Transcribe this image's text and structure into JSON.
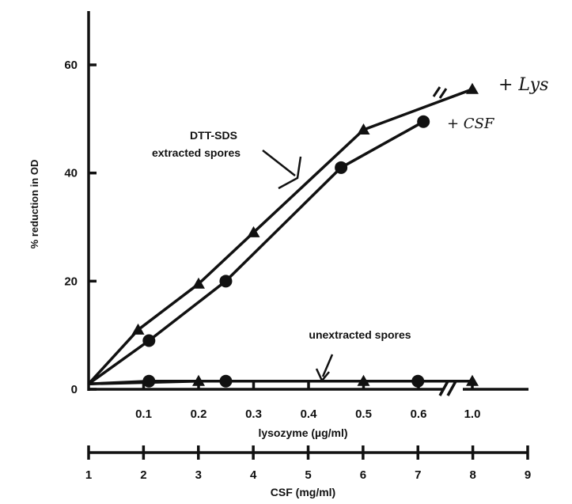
{
  "chart_data": {
    "type": "line",
    "ylabel": "% reduction in OD",
    "yticks": [
      0,
      20,
      40,
      60
    ],
    "ylim": [
      0,
      70
    ],
    "x_primary": {
      "label": "lysozyme (µg/ml)",
      "ticks": [
        "0.1",
        "0.2",
        "0.3",
        "0.4",
        "0.5",
        "0.6",
        "1.0"
      ],
      "tick_values": [
        0.1,
        0.2,
        0.3,
        0.4,
        0.5,
        0.6,
        1.0
      ],
      "axis_break_after": 0.6
    },
    "x_secondary": {
      "label": "CSF (mg/ml)",
      "ticks": [
        "1",
        "2",
        "3",
        "4",
        "5",
        "6",
        "7",
        "8",
        "9"
      ],
      "tick_values": [
        1,
        2,
        3,
        4,
        5,
        6,
        7,
        8,
        9
      ]
    },
    "annotations": {
      "group_extracted_line1": "DTT-SDS",
      "group_extracted_line2": "extracted spores",
      "group_unextracted": "unextracted spores"
    },
    "series": [
      {
        "name": "+ Lys",
        "group": "DTT-SDS extracted spores",
        "marker": "triangle",
        "points": [
          [
            0,
            1
          ],
          [
            0.09,
            11
          ],
          [
            0.2,
            19.5
          ],
          [
            0.3,
            29
          ],
          [
            0.5,
            48
          ],
          [
            1.0,
            55.5
          ]
        ]
      },
      {
        "name": "+ CSF",
        "group": "DTT-SDS extracted spores",
        "marker": "circle",
        "points": [
          [
            1,
            1
          ],
          [
            2.1,
            9
          ],
          [
            3.5,
            20
          ],
          [
            5.6,
            41
          ],
          [
            7.1,
            49.5
          ]
        ]
      },
      {
        "name": "+ Lys",
        "group": "unextracted spores",
        "marker": "triangle",
        "points": [
          [
            0,
            1
          ],
          [
            0.2,
            1.5
          ],
          [
            0.5,
            1.5
          ],
          [
            1.0,
            1.5
          ]
        ]
      },
      {
        "name": "+ CSF",
        "group": "unextracted spores",
        "marker": "circle",
        "points": [
          [
            1,
            1
          ],
          [
            2.1,
            1.5
          ],
          [
            3.5,
            1.5
          ],
          [
            7.0,
            1.5
          ]
        ]
      }
    ]
  }
}
